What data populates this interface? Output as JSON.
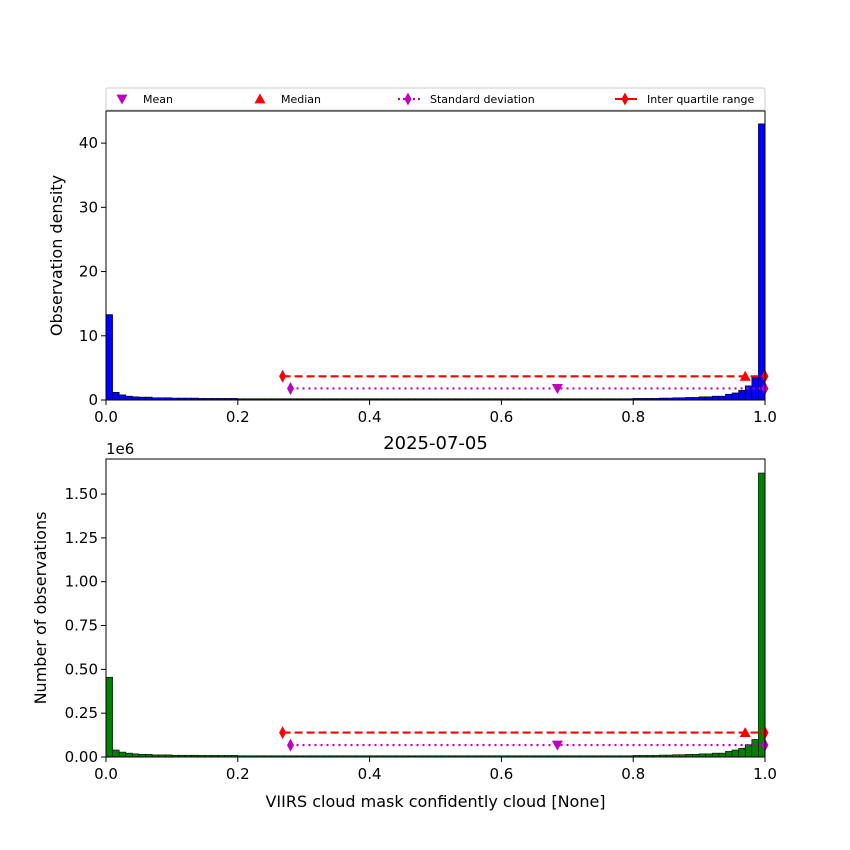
{
  "chart_data": [
    {
      "type": "bar",
      "title": "",
      "xlabel": "",
      "ylabel": "Observation density",
      "xlim": [
        0,
        1
      ],
      "ylim": [
        0,
        45
      ],
      "xticks": [
        "0.0",
        "0.2",
        "0.4",
        "0.6",
        "0.8",
        "1.0"
      ],
      "xtick_values": [
        0,
        0.2,
        0.4,
        0.6,
        0.8,
        1.0
      ],
      "yticks": [
        "0",
        "10",
        "20",
        "30",
        "40"
      ],
      "ytick_values": [
        0,
        10,
        20,
        30,
        40
      ],
      "bar_color": "#0000ff",
      "bin_width": 0.01,
      "bins_start": [
        0.0,
        0.01,
        0.02,
        0.03,
        0.04,
        0.05,
        0.07,
        0.1,
        0.14,
        0.2,
        0.3,
        0.4,
        0.5,
        0.6,
        0.7,
        0.8,
        0.84,
        0.86,
        0.88,
        0.9,
        0.92,
        0.94,
        0.95,
        0.96,
        0.97,
        0.98,
        0.99
      ],
      "bins_end": [
        0.01,
        0.02,
        0.03,
        0.04,
        0.05,
        0.07,
        0.1,
        0.14,
        0.2,
        0.3,
        0.4,
        0.5,
        0.6,
        0.7,
        0.8,
        0.84,
        0.86,
        0.88,
        0.9,
        0.92,
        0.94,
        0.95,
        0.96,
        0.97,
        0.98,
        0.99,
        1.0
      ],
      "bins_value": [
        13.3,
        1.2,
        0.8,
        0.6,
        0.5,
        0.45,
        0.35,
        0.3,
        0.25,
        0.2,
        0.2,
        0.2,
        0.2,
        0.2,
        0.2,
        0.25,
        0.3,
        0.35,
        0.4,
        0.5,
        0.6,
        0.9,
        1.1,
        1.5,
        2.2,
        3.5,
        43.0
      ],
      "stats": {
        "mean": 0.685,
        "median": 0.97,
        "std_low": 0.28,
        "std_high": 1.0,
        "iqr_low": 0.268,
        "iqr_high": 1.0
      }
    },
    {
      "type": "bar",
      "title": "2025-07-05",
      "xlabel": "VIIRS cloud mask confidently cloud [None]",
      "ylabel": "Number of observations",
      "offset_label": "1e6",
      "xlim": [
        0,
        1
      ],
      "ylim": [
        0,
        1.7
      ],
      "xticks": [
        "0.0",
        "0.2",
        "0.4",
        "0.6",
        "0.8",
        "1.0"
      ],
      "xtick_values": [
        0,
        0.2,
        0.4,
        0.6,
        0.8,
        1.0
      ],
      "yticks": [
        "0.00",
        "0.25",
        "0.50",
        "0.75",
        "1.00",
        "1.25",
        "1.50"
      ],
      "ytick_values": [
        0,
        0.25,
        0.5,
        0.75,
        1.0,
        1.25,
        1.5
      ],
      "bar_color": "#008000",
      "bin_width": 0.01,
      "bins_start": [
        0.0,
        0.01,
        0.02,
        0.03,
        0.04,
        0.05,
        0.07,
        0.1,
        0.14,
        0.2,
        0.3,
        0.4,
        0.5,
        0.6,
        0.7,
        0.8,
        0.84,
        0.86,
        0.88,
        0.9,
        0.92,
        0.94,
        0.95,
        0.96,
        0.97,
        0.98,
        0.99
      ],
      "bins_end": [
        0.01,
        0.02,
        0.03,
        0.04,
        0.05,
        0.07,
        0.1,
        0.14,
        0.2,
        0.3,
        0.4,
        0.5,
        0.6,
        0.7,
        0.8,
        0.84,
        0.86,
        0.88,
        0.9,
        0.92,
        0.94,
        0.95,
        0.96,
        0.97,
        0.98,
        0.99,
        1.0
      ],
      "bins_value": [
        0.455,
        0.04,
        0.028,
        0.022,
        0.018,
        0.015,
        0.012,
        0.01,
        0.009,
        0.007,
        0.007,
        0.007,
        0.007,
        0.007,
        0.007,
        0.009,
        0.011,
        0.013,
        0.015,
        0.018,
        0.022,
        0.032,
        0.04,
        0.05,
        0.07,
        0.1,
        1.62
      ],
      "stats": {
        "mean": 0.685,
        "median": 0.97,
        "std_low": 0.28,
        "std_high": 1.0,
        "iqr_low": 0.268,
        "iqr_high": 1.0
      }
    }
  ],
  "legend": {
    "placement": "top",
    "entries": [
      {
        "label": "Mean",
        "color": "#bf00bf",
        "marker": "triangle-down"
      },
      {
        "label": "Median",
        "color": "#ff0000",
        "marker": "triangle-up"
      },
      {
        "label": "Standard deviation",
        "color": "#bf00bf",
        "marker": "diamond-dotted-line"
      },
      {
        "label": "Inter quartile range",
        "color": "#ff0000",
        "marker": "diamond-solid-line"
      }
    ]
  }
}
